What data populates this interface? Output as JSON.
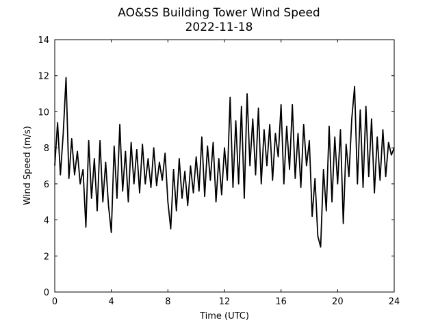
{
  "chart_data": {
    "type": "line",
    "title": "AO&SS Building Tower Wind Speed",
    "subtitle": "2022-11-18",
    "xlabel": "Time (UTC)",
    "ylabel": "Wind Speed (m/s)",
    "xlim": [
      0,
      24
    ],
    "xticks": [
      0,
      4,
      8,
      12,
      16,
      20,
      24
    ],
    "ylim": [
      0,
      14
    ],
    "yticks": [
      0,
      2,
      4,
      6,
      8,
      10,
      12,
      14
    ],
    "x": [
      0,
      0.2,
      0.4,
      0.6,
      0.8,
      1,
      1.2,
      1.4,
      1.6,
      1.8,
      2,
      2.2,
      2.4,
      2.6,
      2.8,
      3,
      3.2,
      3.4,
      3.6,
      3.8,
      4,
      4.2,
      4.4,
      4.6,
      4.8,
      5,
      5.2,
      5.4,
      5.6,
      5.8,
      6,
      6.2,
      6.4,
      6.6,
      6.8,
      7,
      7.2,
      7.4,
      7.6,
      7.8,
      8,
      8.2,
      8.4,
      8.6,
      8.8,
      9,
      9.2,
      9.4,
      9.6,
      9.8,
      10,
      10.2,
      10.4,
      10.6,
      10.8,
      11,
      11.2,
      11.4,
      11.6,
      11.8,
      12,
      12.2,
      12.4,
      12.6,
      12.8,
      13,
      13.2,
      13.4,
      13.6,
      13.8,
      14,
      14.2,
      14.4,
      14.6,
      14.8,
      15,
      15.2,
      15.4,
      15.6,
      15.8,
      16,
      16.2,
      16.4,
      16.6,
      16.8,
      17,
      17.2,
      17.4,
      17.6,
      17.8,
      18,
      18.2,
      18.4,
      18.6,
      18.8,
      19,
      19.2,
      19.4,
      19.6,
      19.8,
      20,
      20.2,
      20.4,
      20.6,
      20.8,
      21,
      21.2,
      21.4,
      21.6,
      21.8,
      22,
      22.2,
      22.4,
      22.6,
      22.8,
      23,
      23.2,
      23.4,
      23.6,
      23.8,
      24
    ],
    "series": [
      {
        "name": "Wind Speed",
        "color": "#000000",
        "values": [
          7.0,
          9.4,
          6.5,
          8.8,
          11.9,
          6.3,
          8.5,
          6.5,
          7.8,
          6.0,
          6.8,
          3.6,
          8.4,
          5.2,
          7.4,
          4.5,
          8.4,
          5.0,
          7.2,
          4.8,
          3.3,
          8.1,
          5.2,
          9.3,
          5.6,
          7.8,
          5.0,
          8.3,
          6.0,
          7.9,
          5.5,
          8.2,
          6.0,
          7.4,
          5.8,
          8.0,
          5.9,
          7.2,
          6.2,
          7.7,
          5.0,
          3.5,
          6.8,
          4.5,
          7.4,
          5.2,
          6.7,
          4.8,
          7.0,
          5.5,
          7.5,
          5.6,
          8.6,
          5.3,
          8.1,
          6.2,
          8.3,
          5.0,
          7.4,
          5.4,
          8.0,
          6.2,
          10.8,
          5.8,
          9.5,
          6.0,
          10.3,
          5.2,
          11.0,
          7.0,
          9.6,
          6.5,
          10.2,
          6.0,
          9.0,
          7.0,
          9.3,
          6.2,
          8.8,
          7.5,
          10.4,
          6.0,
          9.2,
          6.8,
          10.4,
          6.3,
          8.8,
          5.8,
          9.3,
          7.0,
          8.4,
          4.2,
          6.3,
          3.1,
          2.5,
          6.8,
          4.5,
          9.2,
          5.0,
          8.6,
          6.0,
          9.0,
          3.8,
          8.2,
          6.4,
          9.6,
          11.4,
          6.0,
          10.1,
          5.8,
          10.3,
          6.4,
          9.6,
          5.5,
          8.6,
          6.2,
          9.0,
          6.4,
          8.3,
          7.6,
          8.0
        ]
      }
    ]
  }
}
